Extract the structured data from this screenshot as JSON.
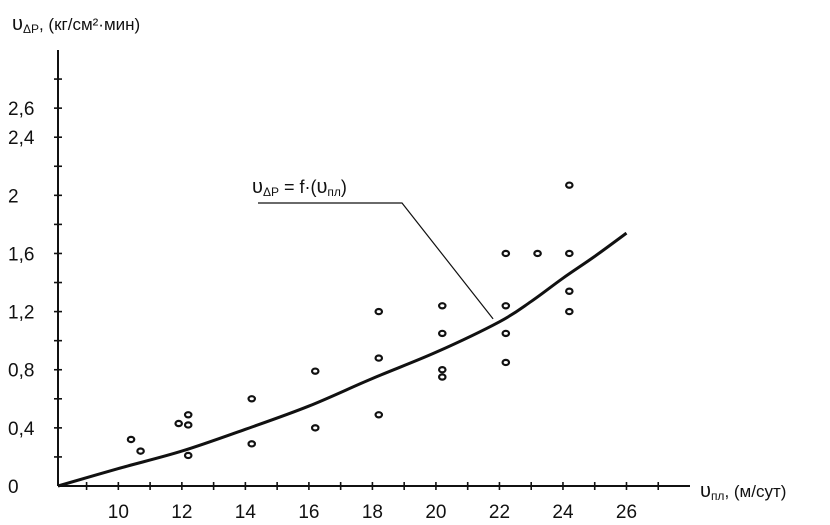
{
  "chart_data": {
    "type": "scatter",
    "ylabel_main": "υ",
    "ylabel_sub": "ΔР",
    "ylabel_units": ", (кг/см²·мин)",
    "xlabel_main": "υ",
    "xlabel_sub": "пл",
    "xlabel_units": ", (м/сут)",
    "x_ticks": [
      "10",
      "12",
      "14",
      "16",
      "18",
      "20",
      "22",
      "24",
      "26"
    ],
    "x_tick_values": [
      10,
      12,
      14,
      16,
      18,
      20,
      22,
      24,
      26
    ],
    "y_ticks": [
      "0",
      "0,4",
      "0,8",
      "1,2",
      "1,6",
      "2",
      "2,4",
      "2,6"
    ],
    "y_tick_values": [
      0,
      0.4,
      0.8,
      1.2,
      1.6,
      2.0,
      2.4,
      2.6
    ],
    "xlim": [
      8.1,
      28
    ],
    "ylim": [
      0,
      3.0
    ],
    "grid": false,
    "annotation": {
      "lhs_main": "υ",
      "lhs_sub": "ΔР",
      "mid": " = f·(",
      "rhs_main": "υ",
      "rhs_sub": "пл",
      "end": ")"
    },
    "points": [
      {
        "x": 10.4,
        "y": 0.32
      },
      {
        "x": 10.7,
        "y": 0.24
      },
      {
        "x": 11.9,
        "y": 0.43
      },
      {
        "x": 12.2,
        "y": 0.49
      },
      {
        "x": 12.2,
        "y": 0.42
      },
      {
        "x": 12.2,
        "y": 0.21
      },
      {
        "x": 14.2,
        "y": 0.6
      },
      {
        "x": 14.2,
        "y": 0.29
      },
      {
        "x": 16.2,
        "y": 0.79
      },
      {
        "x": 16.2,
        "y": 0.4
      },
      {
        "x": 18.2,
        "y": 1.2
      },
      {
        "x": 18.2,
        "y": 0.88
      },
      {
        "x": 18.2,
        "y": 0.49
      },
      {
        "x": 20.2,
        "y": 1.24
      },
      {
        "x": 20.2,
        "y": 1.05
      },
      {
        "x": 20.2,
        "y": 0.8
      },
      {
        "x": 20.2,
        "y": 0.75
      },
      {
        "x": 22.2,
        "y": 1.6
      },
      {
        "x": 22.2,
        "y": 1.24
      },
      {
        "x": 22.2,
        "y": 1.05
      },
      {
        "x": 22.2,
        "y": 0.85
      },
      {
        "x": 23.2,
        "y": 1.6
      },
      {
        "x": 24.2,
        "y": 2.07
      },
      {
        "x": 24.2,
        "y": 1.6
      },
      {
        "x": 24.2,
        "y": 1.34
      },
      {
        "x": 24.2,
        "y": 1.2
      }
    ],
    "trend_line": {
      "x": [
        8.1,
        10,
        12,
        14,
        16,
        18,
        20,
        22,
        23,
        24,
        25,
        26
      ],
      "y": [
        0,
        0.12,
        0.24,
        0.39,
        0.55,
        0.74,
        0.92,
        1.13,
        1.27,
        1.43,
        1.58,
        1.74
      ]
    },
    "annotation_anchor": {
      "x": 21.8,
      "y": 1.15
    }
  }
}
